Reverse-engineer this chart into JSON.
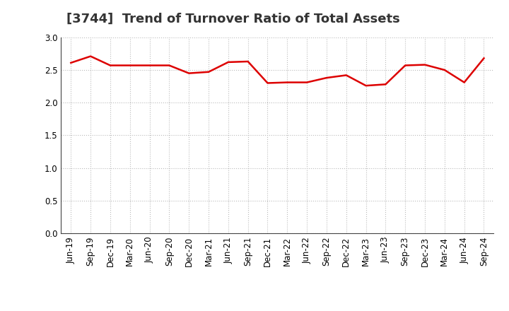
{
  "title": "[3744]  Trend of Turnover Ratio of Total Assets",
  "x_labels": [
    "Jun-19",
    "Sep-19",
    "Dec-19",
    "Mar-20",
    "Jun-20",
    "Sep-20",
    "Dec-20",
    "Mar-21",
    "Jun-21",
    "Sep-21",
    "Dec-21",
    "Mar-22",
    "Jun-22",
    "Sep-22",
    "Dec-22",
    "Mar-23",
    "Jun-23",
    "Sep-23",
    "Dec-23",
    "Mar-24",
    "Jun-24",
    "Sep-24"
  ],
  "values": [
    2.61,
    2.71,
    2.57,
    2.57,
    2.57,
    2.57,
    2.45,
    2.47,
    2.62,
    2.63,
    2.3,
    2.31,
    2.31,
    2.38,
    2.42,
    2.26,
    2.28,
    2.57,
    2.58,
    2.5,
    2.31,
    2.68
  ],
  "line_color": "#dd0000",
  "background_color": "#ffffff",
  "plot_bg_color": "#ffffff",
  "grid_color": "#bbbbbb",
  "ylim": [
    0.0,
    3.0
  ],
  "yticks": [
    0.0,
    0.5,
    1.0,
    1.5,
    2.0,
    2.5,
    3.0
  ],
  "title_fontsize": 13,
  "tick_fontsize": 8.5,
  "line_width": 1.8
}
